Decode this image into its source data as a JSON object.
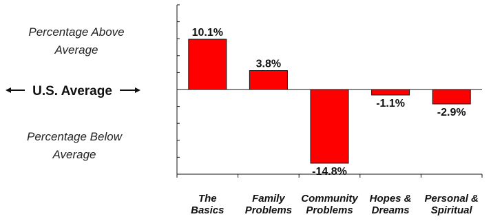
{
  "chart_data": {
    "type": "bar",
    "categories": [
      [
        "The",
        "Basics"
      ],
      [
        "Family",
        "Problems"
      ],
      [
        "Community",
        "Problems"
      ],
      [
        "Hopes &",
        "Dreams"
      ],
      [
        "Personal &",
        "Spiritual"
      ]
    ],
    "values": [
      10.1,
      3.8,
      -14.8,
      -1.1,
      -2.9
    ],
    "value_labels": [
      "10.1%",
      "3.8%",
      "-14.8%",
      "-1.1%",
      "-2.9%"
    ],
    "ylim": [
      -17,
      17
    ],
    "bar_color": "#ff0000",
    "grid": false,
    "baseline_label": "U.S. Average",
    "above_label": [
      "Percentage Above",
      "Average"
    ],
    "below_label": [
      "Percentage Below",
      "Average"
    ]
  }
}
